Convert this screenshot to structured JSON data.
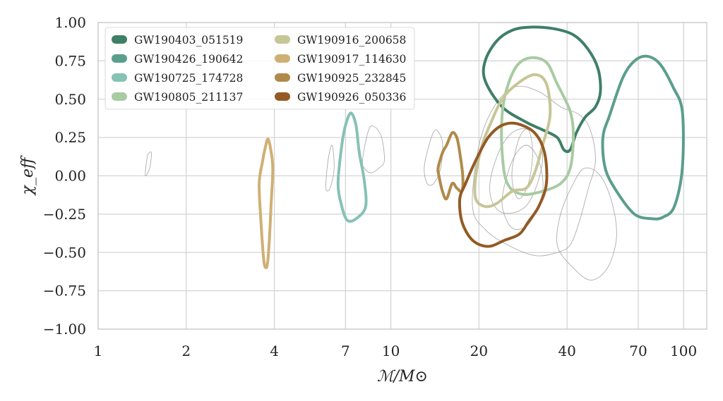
{
  "chart_data": {
    "type": "contour",
    "xlabel": "ℳ/M⊙",
    "ylabel": "χ_eff",
    "xscale": "log",
    "xlim": [
      1,
      120
    ],
    "ylim": [
      -1.0,
      1.0
    ],
    "xticks": [
      1,
      2,
      4,
      7,
      10,
      20,
      40,
      70,
      100
    ],
    "xtick_labels": [
      "1",
      "2",
      "4",
      "7",
      "10",
      "20",
      "40",
      "70",
      "100"
    ],
    "yticks": [
      1.0,
      0.75,
      0.5,
      0.25,
      0.0,
      -0.25,
      -0.5,
      -0.75,
      -1.0
    ],
    "ytick_labels": [
      "1.00",
      "0.75",
      "0.50",
      "0.25",
      "0.00",
      "−0.25",
      "−0.50",
      "−0.75",
      "−1.00"
    ],
    "grid": true,
    "legend_position": "top-left",
    "legend_columns": 2,
    "series": [
      {
        "name": "GW190403_051519",
        "color": "#3f7f67",
        "points": [
          [
            23,
            0.88
          ],
          [
            26,
            0.95
          ],
          [
            30,
            0.97
          ],
          [
            36,
            0.96
          ],
          [
            42,
            0.92
          ],
          [
            47,
            0.83
          ],
          [
            51,
            0.7
          ],
          [
            52,
            0.55
          ],
          [
            50,
            0.45
          ],
          [
            46,
            0.38
          ],
          [
            43,
            0.28
          ],
          [
            41,
            0.17
          ],
          [
            39,
            0.17
          ],
          [
            37,
            0.25
          ],
          [
            33,
            0.3
          ],
          [
            29,
            0.35
          ],
          [
            24,
            0.45
          ],
          [
            21,
            0.62
          ],
          [
            21,
            0.75
          ]
        ]
      },
      {
        "name": "GW190426_190642",
        "color": "#5a9e8c",
        "points": [
          [
            56,
            0.4
          ],
          [
            62,
            0.64
          ],
          [
            68,
            0.75
          ],
          [
            75,
            0.78
          ],
          [
            83,
            0.73
          ],
          [
            92,
            0.58
          ],
          [
            99,
            0.42
          ],
          [
            99,
            0.05
          ],
          [
            93,
            -0.2
          ],
          [
            85,
            -0.27
          ],
          [
            78,
            -0.28
          ],
          [
            68,
            -0.25
          ],
          [
            59,
            -0.1
          ],
          [
            54,
            0.05
          ],
          [
            53,
            0.25
          ]
        ]
      },
      {
        "name": "GW190725_174728",
        "color": "#86c2b4",
        "points": [
          [
            6.6,
            -0.05
          ],
          [
            6.8,
            0.2
          ],
          [
            7.0,
            0.33
          ],
          [
            7.3,
            0.41
          ],
          [
            7.6,
            0.33
          ],
          [
            7.8,
            0.15
          ],
          [
            8.1,
            -0.02
          ],
          [
            8.2,
            -0.2
          ],
          [
            7.6,
            -0.28
          ],
          [
            7.1,
            -0.29
          ],
          [
            6.8,
            -0.2
          ]
        ]
      },
      {
        "name": "GW190805_211137",
        "color": "#a8cba2",
        "points": [
          [
            25,
            0.58
          ],
          [
            27,
            0.72
          ],
          [
            30,
            0.77
          ],
          [
            34,
            0.74
          ],
          [
            37,
            0.6
          ],
          [
            41,
            0.42
          ],
          [
            42,
            0.25
          ],
          [
            41,
            0.05
          ],
          [
            38,
            -0.05
          ],
          [
            33,
            -0.1
          ],
          [
            28,
            -0.12
          ],
          [
            25,
            -0.05
          ],
          [
            24,
            0.15
          ],
          [
            24,
            0.4
          ]
        ]
      },
      {
        "name": "GW190916_200658",
        "color": "#c6c697",
        "points": [
          [
            22,
            0.35
          ],
          [
            24,
            0.5
          ],
          [
            27,
            0.6
          ],
          [
            31,
            0.66
          ],
          [
            34,
            0.6
          ],
          [
            35,
            0.4
          ],
          [
            33,
            0.2
          ],
          [
            31,
            0.02
          ],
          [
            29,
            -0.08
          ],
          [
            26,
            -0.1
          ],
          [
            23,
            -0.18
          ],
          [
            21,
            -0.2
          ],
          [
            19.5,
            -0.15
          ],
          [
            19.5,
            0.0
          ],
          [
            20.5,
            0.2
          ]
        ]
      },
      {
        "name": "GW190917_114630",
        "color": "#cfb074",
        "points": [
          [
            3.65,
            0.1
          ],
          [
            3.72,
            0.18
          ],
          [
            3.8,
            0.24
          ],
          [
            3.88,
            0.18
          ],
          [
            3.95,
            0.05
          ],
          [
            3.9,
            -0.18
          ],
          [
            3.85,
            -0.4
          ],
          [
            3.8,
            -0.55
          ],
          [
            3.75,
            -0.6
          ],
          [
            3.68,
            -0.55
          ],
          [
            3.6,
            -0.3
          ],
          [
            3.55,
            -0.05
          ]
        ]
      },
      {
        "name": "GW190925_232845",
        "color": "#b08a4a",
        "points": [
          [
            14.5,
            0.05
          ],
          [
            15.0,
            0.15
          ],
          [
            15.5,
            0.2
          ],
          [
            16.2,
            0.28
          ],
          [
            16.8,
            0.25
          ],
          [
            17.2,
            0.15
          ],
          [
            17.6,
            0.0
          ],
          [
            17.5,
            -0.1
          ],
          [
            16.8,
            -0.08
          ],
          [
            16.2,
            -0.05
          ],
          [
            15.5,
            -0.15
          ],
          [
            15.0,
            -0.1
          ],
          [
            14.6,
            0.0
          ]
        ]
      },
      {
        "name": "GW190926_050336",
        "color": "#935a25",
        "points": [
          [
            18.0,
            -0.05
          ],
          [
            19.5,
            0.1
          ],
          [
            21.5,
            0.25
          ],
          [
            24.0,
            0.33
          ],
          [
            27.0,
            0.34
          ],
          [
            31.0,
            0.28
          ],
          [
            33.5,
            0.15
          ],
          [
            34.0,
            -0.05
          ],
          [
            32.0,
            -0.2
          ],
          [
            29.5,
            -0.3
          ],
          [
            27.5,
            -0.38
          ],
          [
            24.5,
            -0.42
          ],
          [
            21.5,
            -0.46
          ],
          [
            19.0,
            -0.42
          ],
          [
            17.5,
            -0.3
          ],
          [
            17.2,
            -0.15
          ]
        ]
      }
    ],
    "background_contours": [
      [
        [
          1.45,
          0.0
        ],
        [
          1.5,
          0.05
        ],
        [
          1.52,
          0.15
        ],
        [
          1.48,
          0.14
        ],
        [
          1.46,
          0.08
        ]
      ],
      [
        [
          6.0,
          -0.08
        ],
        [
          6.1,
          0.1
        ],
        [
          6.3,
          0.2
        ],
        [
          6.4,
          0.05
        ],
        [
          6.2,
          -0.08
        ]
      ],
      [
        [
          8.0,
          0.1
        ],
        [
          8.4,
          0.3
        ],
        [
          8.8,
          0.32
        ],
        [
          9.3,
          0.25
        ],
        [
          9.5,
          0.1
        ],
        [
          9.1,
          0.05
        ],
        [
          8.6,
          0.02
        ],
        [
          8.2,
          0.04
        ]
      ],
      [
        [
          13.0,
          0.05
        ],
        [
          13.5,
          0.2
        ],
        [
          14.2,
          0.3
        ],
        [
          15.0,
          0.22
        ],
        [
          14.8,
          0.05
        ],
        [
          14.0,
          -0.05
        ],
        [
          13.3,
          -0.05
        ]
      ],
      [
        [
          19.0,
          -0.2
        ],
        [
          20.0,
          0.2
        ],
        [
          22.5,
          0.45
        ],
        [
          26.5,
          0.58
        ],
        [
          32,
          0.55
        ],
        [
          38,
          0.45
        ],
        [
          44,
          0.4
        ],
        [
          48,
          0.3
        ],
        [
          50,
          0.1
        ],
        [
          47,
          -0.1
        ],
        [
          44,
          -0.3
        ],
        [
          41,
          -0.45
        ],
        [
          37,
          -0.5
        ],
        [
          31,
          -0.52
        ],
        [
          25,
          -0.45
        ],
        [
          21,
          -0.35
        ]
      ],
      [
        [
          38,
          -0.25
        ],
        [
          42,
          -0.05
        ],
        [
          46,
          0.05
        ],
        [
          52,
          0.0
        ],
        [
          57,
          -0.18
        ],
        [
          59,
          -0.4
        ],
        [
          55,
          -0.6
        ],
        [
          48,
          -0.68
        ],
        [
          41,
          -0.58
        ],
        [
          37,
          -0.45
        ]
      ],
      [
        [
          22,
          0.0
        ],
        [
          24,
          0.2
        ],
        [
          27,
          0.3
        ],
        [
          31,
          0.28
        ],
        [
          33,
          0.12
        ],
        [
          31,
          -0.1
        ],
        [
          28,
          -0.22
        ],
        [
          24,
          -0.24
        ],
        [
          22,
          -0.15
        ]
      ],
      [
        [
          24,
          -0.15
        ],
        [
          26,
          0.1
        ],
        [
          29,
          0.2
        ],
        [
          32,
          0.1
        ],
        [
          33,
          -0.1
        ],
        [
          30,
          -0.3
        ],
        [
          27,
          -0.35
        ],
        [
          25,
          -0.3
        ]
      ],
      [
        [
          26,
          0.05
        ],
        [
          27.5,
          0.25
        ],
        [
          29.5,
          0.3
        ],
        [
          30.5,
          0.15
        ],
        [
          29.5,
          -0.05
        ],
        [
          27.5,
          -0.15
        ],
        [
          26.2,
          -0.08
        ]
      ]
    ]
  }
}
